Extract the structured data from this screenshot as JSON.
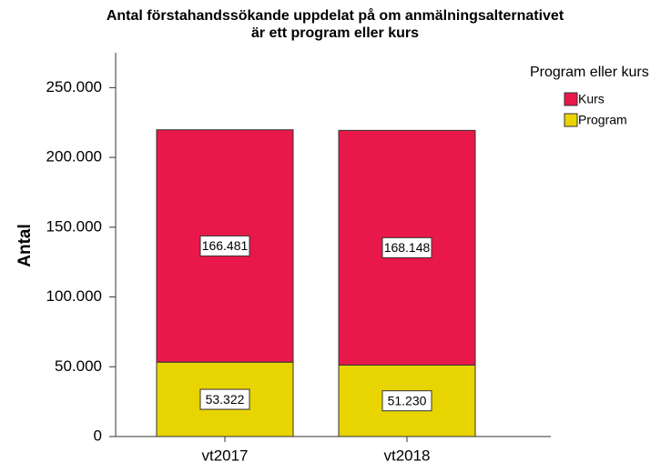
{
  "chart_data": {
    "type": "stacked_bar",
    "title": [
      "Antal förstahandssökande uppdelat på om anmälningsalternativet",
      "är ett program eller kurs"
    ],
    "y_label": "Antal",
    "legend_title": "Program eller kurs",
    "legend": "top-right",
    "categories": [
      "vt2017",
      "vt2018"
    ],
    "series": [
      {
        "name": "Kurs",
        "color": "#e8184b",
        "values": [
          166481,
          168148
        ],
        "value_labels": [
          "166.481",
          "168.148"
        ]
      },
      {
        "name": "Program",
        "color": "#e8d400",
        "values": [
          53322,
          51230
        ],
        "value_labels": [
          "53.322",
          "51.230"
        ]
      }
    ],
    "ylim": [
      0,
      275000
    ],
    "yticks": [
      0,
      {
        "value": 50000,
        "label": "50.000"
      },
      {
        "value": 100000,
        "label": "100.000"
      },
      {
        "value": 150000,
        "label": "150.000"
      },
      {
        "value": 200000,
        "label": "200.000"
      },
      {
        "value": 250000,
        "label": "250.000"
      }
    ]
  }
}
